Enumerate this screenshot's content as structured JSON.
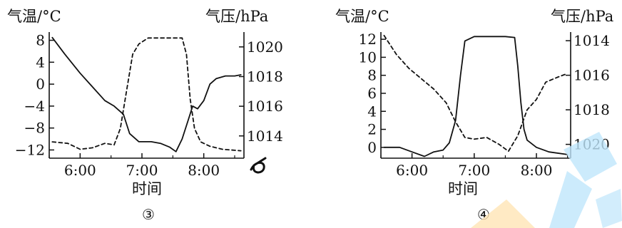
{
  "chart_data": [
    {
      "type": "line",
      "panel_label": "③",
      "ylabel": "气温/°C",
      "y2label": "气压/hPa",
      "xlabel": "时间",
      "x_ticks": [
        "6:00",
        "7:00",
        "8:00"
      ],
      "x_tick_values": [
        6.0,
        7.0,
        8.0
      ],
      "xlim": [
        5.5,
        8.65
      ],
      "ylim": [
        -13.5,
        9.5
      ],
      "y_ticks": [
        8,
        4,
        0,
        -4,
        -8,
        -12
      ],
      "y_tick_labels": [
        "8",
        "4",
        "0",
        "−4",
        "−8",
        "−12"
      ],
      "y2lim": [
        1012.5,
        1021.0
      ],
      "y2_ticks": [
        1020,
        1018,
        1016,
        1014
      ],
      "y2_tick_labels": [
        "1020",
        "1018",
        "1016",
        "1014"
      ],
      "y2_reversed": false,
      "grid": false,
      "series": [
        {
          "axis": "left",
          "style": "solid",
          "x": [
            5.55,
            5.75,
            6.0,
            6.2,
            6.4,
            6.55,
            6.7,
            6.8,
            6.95,
            7.15,
            7.3,
            7.45,
            7.55,
            7.65,
            7.75,
            7.82,
            7.9,
            8.0,
            8.1,
            8.2,
            8.35,
            8.5,
            8.6
          ],
          "y": [
            8.5,
            5.5,
            2.0,
            -0.5,
            -3.0,
            -4.0,
            -5.5,
            -9.0,
            -10.5,
            -10.5,
            -10.8,
            -11.5,
            -12.3,
            -10.0,
            -6.5,
            -4.0,
            -4.5,
            -3.0,
            0.0,
            1.0,
            1.5,
            1.5,
            1.7
          ]
        },
        {
          "axis": "right",
          "style": "dashed",
          "x": [
            5.55,
            5.8,
            6.0,
            6.2,
            6.4,
            6.55,
            6.65,
            6.75,
            6.85,
            6.95,
            7.1,
            7.3,
            7.5,
            7.65,
            7.72,
            7.78,
            7.85,
            7.95,
            8.1,
            8.3,
            8.6
          ],
          "y": [
            1013.6,
            1013.5,
            1013.1,
            1013.2,
            1013.5,
            1013.4,
            1014.5,
            1017.0,
            1019.5,
            1020.2,
            1020.6,
            1020.6,
            1020.6,
            1020.6,
            1019.5,
            1016.5,
            1014.5,
            1013.6,
            1013.3,
            1013.1,
            1013.0
          ]
        }
      ]
    },
    {
      "type": "line",
      "panel_label": "④",
      "ylabel": "气温/°C",
      "y2label": "气压/hPa",
      "xlabel": "时间",
      "x_ticks": [
        "6:00",
        "7:00",
        "8:00"
      ],
      "x_tick_values": [
        6.0,
        7.0,
        8.0
      ],
      "xlim": [
        5.5,
        8.55
      ],
      "ylim": [
        -1.2,
        12.8
      ],
      "y_ticks": [
        12,
        10,
        8,
        6,
        4,
        2,
        0
      ],
      "y_tick_labels": [
        "12",
        "10",
        "8",
        "6",
        "4",
        "2",
        "0"
      ],
      "y2lim": [
        1020.8,
        1013.5
      ],
      "y2_ticks": [
        1014,
        1016,
        1018,
        1020
      ],
      "y2_tick_labels": [
        "1014",
        "1016",
        "1018",
        "1020"
      ],
      "y2_reversed": true,
      "grid": false,
      "series": [
        {
          "axis": "left",
          "style": "solid",
          "x": [
            5.55,
            5.8,
            6.0,
            6.2,
            6.35,
            6.5,
            6.6,
            6.7,
            6.78,
            6.85,
            7.0,
            7.3,
            7.5,
            7.65,
            7.7,
            7.75,
            7.8,
            7.85,
            8.0,
            8.2,
            8.5
          ],
          "y": [
            0.0,
            0.0,
            -0.5,
            -1.0,
            -0.5,
            -0.3,
            0.5,
            3.0,
            8.0,
            11.8,
            12.3,
            12.3,
            12.3,
            12.2,
            9.0,
            5.0,
            2.0,
            0.8,
            0.0,
            -0.5,
            -0.8
          ]
        },
        {
          "axis": "right",
          "style": "dashed",
          "x": [
            5.55,
            5.75,
            5.95,
            6.15,
            6.35,
            6.55,
            6.7,
            6.85,
            7.0,
            7.2,
            7.4,
            7.55,
            7.7,
            7.85,
            8.0,
            8.15,
            8.35,
            8.5
          ],
          "y": [
            1013.7,
            1014.8,
            1015.6,
            1016.2,
            1016.8,
            1017.6,
            1018.7,
            1019.6,
            1019.7,
            1019.6,
            1020.0,
            1020.4,
            1019.5,
            1018.0,
            1017.4,
            1016.4,
            1016.1,
            1015.9
          ]
        }
      ]
    }
  ]
}
